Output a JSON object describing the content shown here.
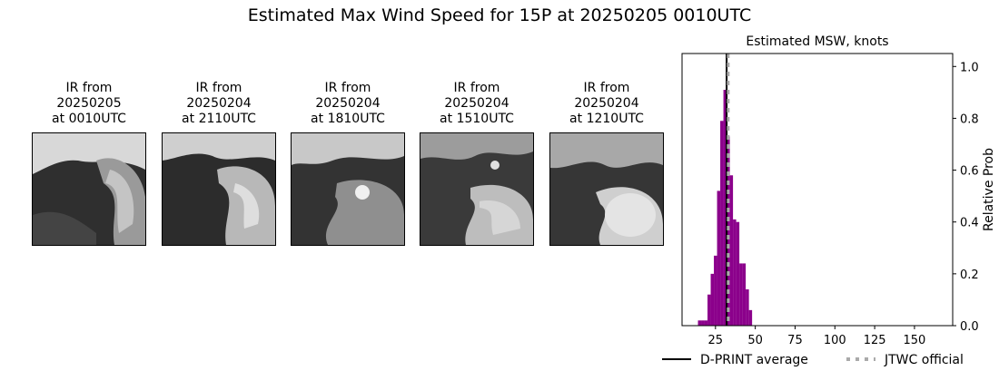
{
  "figure": {
    "title": "Estimated Max Wind Speed for 15P at 20250205 0010UTC"
  },
  "ir_panels": [
    {
      "caption": "IR from\n20250205\nat 0010UTC"
    },
    {
      "caption": "IR from\n20250204\nat 2110UTC"
    },
    {
      "caption": "IR from\n20250204\nat 1810UTC"
    },
    {
      "caption": "IR from\n20250204\nat 1510UTC"
    },
    {
      "caption": "IR from\n20250204\nat 1210UTC"
    }
  ],
  "chart_data": {
    "type": "bar",
    "title": "Estimated MSW, knots",
    "xlabel": "",
    "ylabel": "Relative Prob",
    "xlim": [
      4,
      174
    ],
    "ylim": [
      0,
      1.05
    ],
    "xticks": [
      25,
      50,
      75,
      100,
      125,
      150
    ],
    "yticks": [
      "0.0",
      "0.2",
      "0.4",
      "0.6",
      "0.8",
      "1.0"
    ],
    "bin_width": 2,
    "color": "#8b008b",
    "histogram": [
      {
        "x": 15,
        "y": 0.02
      },
      {
        "x": 17,
        "y": 0.02
      },
      {
        "x": 19,
        "y": 0.02
      },
      {
        "x": 21,
        "y": 0.12
      },
      {
        "x": 23,
        "y": 0.2
      },
      {
        "x": 25,
        "y": 0.27
      },
      {
        "x": 27,
        "y": 0.52
      },
      {
        "x": 29,
        "y": 0.79
      },
      {
        "x": 31,
        "y": 0.91
      },
      {
        "x": 33,
        "y": 0.73
      },
      {
        "x": 35,
        "y": 0.58
      },
      {
        "x": 37,
        "y": 0.41
      },
      {
        "x": 39,
        "y": 0.4
      },
      {
        "x": 41,
        "y": 0.24
      },
      {
        "x": 43,
        "y": 0.24
      },
      {
        "x": 45,
        "y": 0.14
      },
      {
        "x": 47,
        "y": 0.06
      }
    ],
    "dprint_average": 32,
    "jtwc_official": 33,
    "legend": {
      "placement": "bottom",
      "entries": [
        {
          "label": "D-PRINT average",
          "style": "solid",
          "color": "#000000"
        },
        {
          "label": "JTWC official",
          "style": "dotted",
          "color": "#aaaaaa"
        }
      ]
    }
  }
}
